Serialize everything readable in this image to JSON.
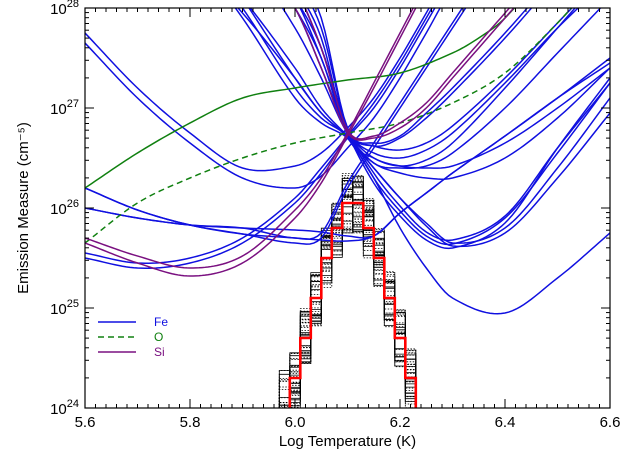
{
  "chart_data": {
    "type": "line",
    "xlabel": "Log Temperature (K)",
    "ylabel": "Emission Measure (cm⁻⁵)",
    "xlim": [
      5.6,
      6.6
    ],
    "ylim_log10": [
      24,
      28
    ],
    "y_scale": "log",
    "x_ticks": [
      "5.6",
      "5.8",
      "6.0",
      "6.2",
      "6.4",
      "6.6"
    ],
    "x_tick_values": [
      5.6,
      5.8,
      6.0,
      6.2,
      6.4,
      6.6
    ],
    "y_ticks": [
      {
        "base": "10",
        "exp": "24",
        "value": 24
      },
      {
        "base": "10",
        "exp": "25",
        "value": 25
      },
      {
        "base": "10",
        "exp": "26",
        "value": 26
      },
      {
        "base": "10",
        "exp": "27",
        "value": 27
      },
      {
        "base": "10",
        "exp": "28",
        "value": 28
      }
    ],
    "legend_position": "bottom-left",
    "legend": [
      {
        "label": "Fe",
        "color": "#1010e0",
        "dash": "solid"
      },
      {
        "label": "O",
        "color": "#108010",
        "dash": "dashed"
      },
      {
        "label": "Si",
        "color": "#7a1080",
        "dash": "solid"
      }
    ],
    "colors": {
      "fe": "#1010e0",
      "o": "#108010",
      "si": "#7a1080",
      "dem": "#ff0000",
      "mc": "#000000"
    },
    "series": [
      {
        "name": "Fe",
        "color": "#1010e0",
        "dash": "solid",
        "x": [
          5.6,
          5.7,
          5.8,
          5.9,
          6.0,
          6.05,
          6.1,
          6.15,
          6.2,
          6.25,
          6.3,
          6.4,
          6.5,
          6.6
        ],
        "y": [
          26.2,
          25.98,
          25.83,
          25.74,
          25.7,
          25.68,
          25.67,
          25.72,
          25.95,
          26.15,
          26.35,
          26.72,
          27.1,
          27.5
        ]
      },
      {
        "name": "Fe",
        "color": "#1010e0",
        "dash": "solid",
        "x": [
          5.6,
          5.7,
          5.8,
          5.9,
          6.0,
          6.05,
          6.1,
          6.15,
          6.2,
          6.25,
          6.3,
          6.4,
          6.5,
          6.6
        ],
        "y": [
          26.0,
          25.9,
          25.83,
          25.8,
          25.78,
          25.76,
          25.72,
          25.72,
          25.95,
          26.15,
          26.35,
          26.72,
          27.1,
          27.45
        ]
      },
      {
        "name": "Fe",
        "color": "#1010e0",
        "dash": "solid",
        "x": [
          5.6,
          5.7,
          5.8,
          5.9,
          6.0,
          6.05,
          6.1,
          6.15,
          6.2,
          6.25,
          6.3,
          6.4,
          6.5,
          6.6
        ],
        "y": [
          27.75,
          27.2,
          26.75,
          26.4,
          26.42,
          26.55,
          26.8,
          27.1,
          27.5,
          27.95,
          28.4,
          29.0,
          29.5,
          30.0
        ]
      },
      {
        "name": "Fe",
        "color": "#1010e0",
        "dash": "solid",
        "x": [
          5.6,
          5.7,
          5.8,
          5.9,
          6.0,
          6.05,
          6.1,
          6.15,
          6.2,
          6.25,
          6.3,
          6.4,
          6.5,
          6.6
        ],
        "y": [
          27.65,
          27.1,
          26.65,
          26.3,
          26.2,
          26.32,
          26.6,
          26.9,
          27.3,
          27.75,
          28.2,
          28.8,
          29.3,
          29.8
        ]
      },
      {
        "name": "Fe",
        "color": "#1010e0",
        "dash": "solid",
        "x": [
          5.6,
          5.7,
          5.8,
          5.9,
          6.0,
          6.05,
          6.1,
          6.15,
          6.2,
          6.25,
          6.3,
          6.4,
          6.5,
          6.6
        ],
        "y": [
          29.6,
          29.2,
          28.7,
          28.1,
          27.4,
          27.0,
          26.72,
          26.45,
          26.35,
          26.3,
          26.3,
          26.5,
          26.9,
          27.4
        ]
      },
      {
        "name": "Fe",
        "color": "#1010e0",
        "dash": "solid",
        "x": [
          5.6,
          5.7,
          5.8,
          5.9,
          6.0,
          6.05,
          6.1,
          6.15,
          6.2,
          6.25,
          6.3,
          6.4,
          6.5,
          6.6
        ],
        "y": [
          29.4,
          29.0,
          28.5,
          27.95,
          27.3,
          26.95,
          26.72,
          26.5,
          26.42,
          26.4,
          26.42,
          26.65,
          27.0,
          27.4
        ]
      },
      {
        "name": "Fe",
        "color": "#1010e0",
        "dash": "solid",
        "x": [
          5.6,
          5.7,
          5.8,
          5.9,
          6.0,
          6.05,
          6.1,
          6.15,
          6.2,
          6.25,
          6.3,
          6.4,
          6.5,
          6.6
        ],
        "y": [
          29.8,
          29.3,
          28.7,
          28.0,
          27.2,
          26.9,
          26.72,
          26.4,
          26.1,
          25.85,
          25.65,
          25.8,
          26.4,
          27.1
        ]
      },
      {
        "name": "Fe",
        "color": "#1010e0",
        "dash": "solid",
        "x": [
          5.6,
          5.7,
          5.8,
          5.9,
          6.0,
          6.05,
          6.1,
          6.15,
          6.2,
          6.25,
          6.3,
          6.4,
          6.5,
          6.6
        ],
        "y": [
          29.7,
          29.2,
          28.6,
          27.9,
          27.1,
          26.85,
          26.7,
          26.4,
          26.1,
          25.82,
          25.62,
          25.75,
          26.3,
          26.95
        ]
      },
      {
        "name": "Fe",
        "color": "#1010e0",
        "dash": "solid",
        "x": [
          5.6,
          5.7,
          5.8,
          5.9,
          6.0,
          6.05,
          6.1,
          6.15,
          6.2,
          6.25,
          6.3,
          6.4,
          6.5,
          6.6
        ],
        "y": [
          29.9,
          29.5,
          28.9,
          28.1,
          27.3,
          26.95,
          26.7,
          26.3,
          25.8,
          25.4,
          25.1,
          24.95,
          25.3,
          25.75
        ]
      },
      {
        "name": "Fe",
        "color": "#1010e0",
        "dash": "solid",
        "x": [
          5.6,
          5.7,
          5.8,
          5.9,
          6.0,
          6.05,
          6.1,
          6.15,
          6.2,
          6.25,
          6.3,
          6.4,
          6.5,
          6.6
        ],
        "y": [
          30.2,
          29.9,
          29.5,
          28.8,
          28.0,
          27.5,
          26.75,
          26.62,
          26.58,
          26.65,
          26.82,
          27.3,
          27.85,
          28.4
        ]
      },
      {
        "name": "Fe",
        "color": "#1010e0",
        "dash": "solid",
        "x": [
          5.6,
          5.7,
          5.8,
          5.9,
          6.0,
          6.05,
          6.1,
          6.15,
          6.2,
          6.25,
          6.3,
          6.4,
          6.5,
          6.6
        ],
        "y": [
          30.0,
          29.7,
          29.3,
          28.6,
          27.8,
          27.3,
          26.75,
          26.55,
          26.5,
          26.58,
          26.75,
          27.25,
          27.8,
          28.3
        ]
      },
      {
        "name": "Fe",
        "color": "#1010e0",
        "dash": "solid",
        "x": [
          5.6,
          5.7,
          5.8,
          5.9,
          6.0,
          6.05,
          6.1,
          6.15,
          6.2,
          6.25,
          6.3,
          6.4,
          6.5,
          6.6
        ],
        "y": [
          30.4,
          30.0,
          29.5,
          28.9,
          28.2,
          27.7,
          26.72,
          26.5,
          26.42,
          26.48,
          26.65,
          27.2,
          27.8,
          28.4
        ]
      },
      {
        "name": "Fe",
        "color": "#1010e0",
        "dash": "solid",
        "x": [
          5.6,
          5.7,
          5.8,
          5.9,
          6.0,
          6.05,
          6.1,
          6.15,
          6.2,
          6.25,
          6.3,
          6.4,
          6.5,
          6.6
        ],
        "y": [
          31.0,
          30.4,
          29.8,
          29.1,
          28.3,
          27.8,
          26.8,
          26.62,
          26.7,
          26.9,
          27.15,
          27.7,
          28.3,
          28.9
        ]
      },
      {
        "name": "Fe",
        "color": "#1010e0",
        "dash": "solid",
        "x": [
          5.6,
          5.7,
          5.8,
          5.9,
          6.0,
          6.05,
          6.1,
          6.15,
          6.2,
          6.25,
          6.3,
          6.4,
          6.5,
          6.6
        ],
        "y": [
          31.2,
          30.6,
          29.9,
          29.2,
          28.4,
          27.9,
          26.8,
          26.65,
          26.72,
          26.95,
          27.2,
          27.75,
          28.35,
          28.95
        ]
      },
      {
        "name": "Fe",
        "color": "#1010e0",
        "dash": "solid",
        "x": [
          5.6,
          5.7,
          5.8,
          5.9,
          6.0,
          6.05,
          6.1,
          6.15,
          6.2,
          6.25,
          6.3,
          6.4,
          6.5,
          6.6
        ],
        "y": [
          30.8,
          30.2,
          29.6,
          28.9,
          28.1,
          27.6,
          26.78,
          26.45,
          26.4,
          26.42,
          26.55,
          27.0,
          27.55,
          28.1
        ]
      },
      {
        "name": "Fe",
        "color": "#1010e0",
        "dash": "solid",
        "x": [
          5.6,
          5.7,
          5.8,
          5.9,
          6.0,
          6.05,
          6.1,
          6.15,
          6.2,
          6.25,
          6.3,
          6.4,
          6.5,
          6.6
        ],
        "y": [
          25.55,
          25.45,
          25.5,
          25.7,
          26.1,
          26.4,
          26.72,
          27.05,
          27.45,
          27.9,
          28.35,
          29.1,
          29.8,
          30.5
        ]
      },
      {
        "name": "Fe",
        "color": "#1010e0",
        "dash": "solid",
        "x": [
          5.6,
          5.7,
          5.8,
          5.9,
          6.0,
          6.05,
          6.1,
          6.15,
          6.2,
          6.25,
          6.3,
          6.4,
          6.5,
          6.6
        ],
        "y": [
          25.5,
          25.4,
          25.45,
          25.65,
          26.05,
          26.35,
          26.7,
          27.0,
          27.4,
          27.85,
          28.3,
          29.05,
          29.75,
          30.45
        ]
      },
      {
        "name": "Fe",
        "color": "#1010e0",
        "dash": "solid",
        "x": [
          5.6,
          5.7,
          5.8,
          5.9,
          6.0,
          6.05,
          6.1,
          6.15,
          6.2,
          6.25,
          6.3,
          6.4,
          6.5,
          6.6
        ],
        "y": [
          26.2,
          25.98,
          25.83,
          25.74,
          25.65,
          25.7,
          26.2,
          26.6,
          27.0,
          27.4,
          27.8,
          28.6,
          29.4,
          30.2
        ]
      },
      {
        "name": "Fe",
        "color": "#1010e0",
        "dash": "solid",
        "x": [
          5.6,
          5.7,
          5.8,
          5.9,
          6.0,
          6.05,
          6.1,
          6.15,
          6.2,
          6.25,
          6.3,
          6.4,
          6.5,
          6.6
        ],
        "y": [
          26.0,
          25.9,
          25.83,
          25.8,
          25.7,
          25.75,
          26.25,
          26.65,
          27.05,
          27.45,
          27.85,
          28.65,
          29.45,
          30.25
        ]
      },
      {
        "name": "Fe",
        "color": "#1010e0",
        "dash": "solid",
        "x": [
          5.6,
          5.7,
          5.8,
          5.9,
          6.0,
          6.05,
          6.1,
          6.15,
          6.2,
          6.25,
          6.3,
          6.4,
          6.5,
          6.6
        ],
        "y": [
          30.5,
          30.1,
          29.5,
          28.8,
          28.0,
          27.4,
          26.75,
          26.25,
          25.92,
          25.68,
          25.6,
          25.85,
          26.6,
          27.3
        ]
      },
      {
        "name": "Fe",
        "color": "#1010e0",
        "dash": "solid",
        "x": [
          5.6,
          5.7,
          5.8,
          5.9,
          6.0,
          6.05,
          6.1,
          6.15,
          6.2,
          6.25,
          6.3,
          6.4,
          6.5,
          6.6
        ],
        "y": [
          30.6,
          30.2,
          29.6,
          28.9,
          28.1,
          27.5,
          26.78,
          26.3,
          25.97,
          25.72,
          25.64,
          25.9,
          26.55,
          27.25
        ]
      },
      {
        "name": "Fe",
        "color": "#1010e0",
        "dash": "solid",
        "x": [
          5.6,
          5.7,
          5.8,
          5.9,
          6.0,
          6.05,
          6.1,
          6.15,
          6.2,
          6.25,
          6.3,
          6.4,
          6.5,
          6.6
        ],
        "y": [
          30.7,
          30.3,
          29.7,
          29.0,
          28.2,
          27.6,
          26.8,
          26.35,
          26.02,
          25.76,
          25.68,
          25.92,
          26.6,
          27.25
        ]
      },
      {
        "name": "O",
        "color": "#108010",
        "dash": "solid",
        "x": [
          5.6,
          5.7,
          5.8,
          5.9,
          6.0,
          6.1,
          6.2,
          6.3,
          6.35,
          6.4,
          6.5
        ],
        "y": [
          26.2,
          26.55,
          26.85,
          27.1,
          27.2,
          27.28,
          27.35,
          27.55,
          27.7,
          27.9,
          28.5
        ]
      },
      {
        "name": "O",
        "color": "#108010",
        "dash": "dashed",
        "x": [
          5.6,
          5.7,
          5.8,
          5.9,
          6.0,
          6.1,
          6.2,
          6.3,
          6.4,
          6.5,
          6.55,
          6.6
        ],
        "y": [
          25.65,
          26.05,
          26.3,
          26.5,
          26.65,
          26.75,
          26.85,
          27.05,
          27.35,
          27.85,
          28.15,
          28.5
        ]
      },
      {
        "name": "Si",
        "color": "#7a1080",
        "dash": "solid",
        "x": [
          5.6,
          5.7,
          5.8,
          5.9,
          6.0,
          6.05,
          6.1,
          6.15,
          6.2,
          6.25,
          6.3,
          6.35,
          6.4
        ],
        "y": [
          25.65,
          25.45,
          25.32,
          25.45,
          25.9,
          26.25,
          26.72,
          27.2,
          27.7,
          28.2,
          28.7,
          29.2,
          29.7
        ]
      },
      {
        "name": "Si",
        "color": "#7a1080",
        "dash": "solid",
        "x": [
          5.6,
          5.7,
          5.8,
          5.9,
          6.0,
          6.05,
          6.1,
          6.15,
          6.2,
          6.25,
          6.3,
          6.35,
          6.4
        ],
        "y": [
          25.7,
          25.52,
          25.4,
          25.52,
          25.98,
          26.3,
          26.75,
          27.25,
          27.75,
          28.25,
          28.75,
          29.25,
          29.75
        ]
      },
      {
        "name": "Si",
        "color": "#7a1080",
        "dash": "solid",
        "x": [
          5.6,
          5.7,
          5.8,
          5.9,
          6.0,
          6.05,
          6.1,
          6.15,
          6.2,
          6.25,
          6.3,
          6.4,
          6.5
        ],
        "y": [
          30.0,
          29.7,
          29.3,
          28.7,
          28.0,
          27.4,
          26.75,
          26.7,
          26.8,
          27.0,
          27.3,
          27.9,
          28.5
        ]
      },
      {
        "name": "Si",
        "color": "#7a1080",
        "dash": "solid",
        "x": [
          5.6,
          5.7,
          5.8,
          5.9,
          6.0,
          6.05,
          6.1,
          6.15,
          6.2,
          6.25,
          6.3,
          6.4,
          6.5
        ],
        "y": [
          30.2,
          29.9,
          29.5,
          28.9,
          28.2,
          27.6,
          26.78,
          26.72,
          26.85,
          27.05,
          27.35,
          27.95,
          28.55
        ]
      }
    ],
    "dem": {
      "color": "#ff0000",
      "step": "histogram",
      "bin_edges": [
        5.97,
        5.99,
        6.01,
        6.03,
        6.05,
        6.07,
        6.09,
        6.11,
        6.13,
        6.15,
        6.17,
        6.19,
        6.21,
        6.23
      ],
      "values": [
        23.9,
        24.3,
        24.7,
        25.1,
        25.5,
        25.8,
        26.05,
        26.05,
        25.8,
        25.5,
        25.1,
        24.7,
        24.3,
        23.9
      ],
      "spread": 0.3
    }
  }
}
